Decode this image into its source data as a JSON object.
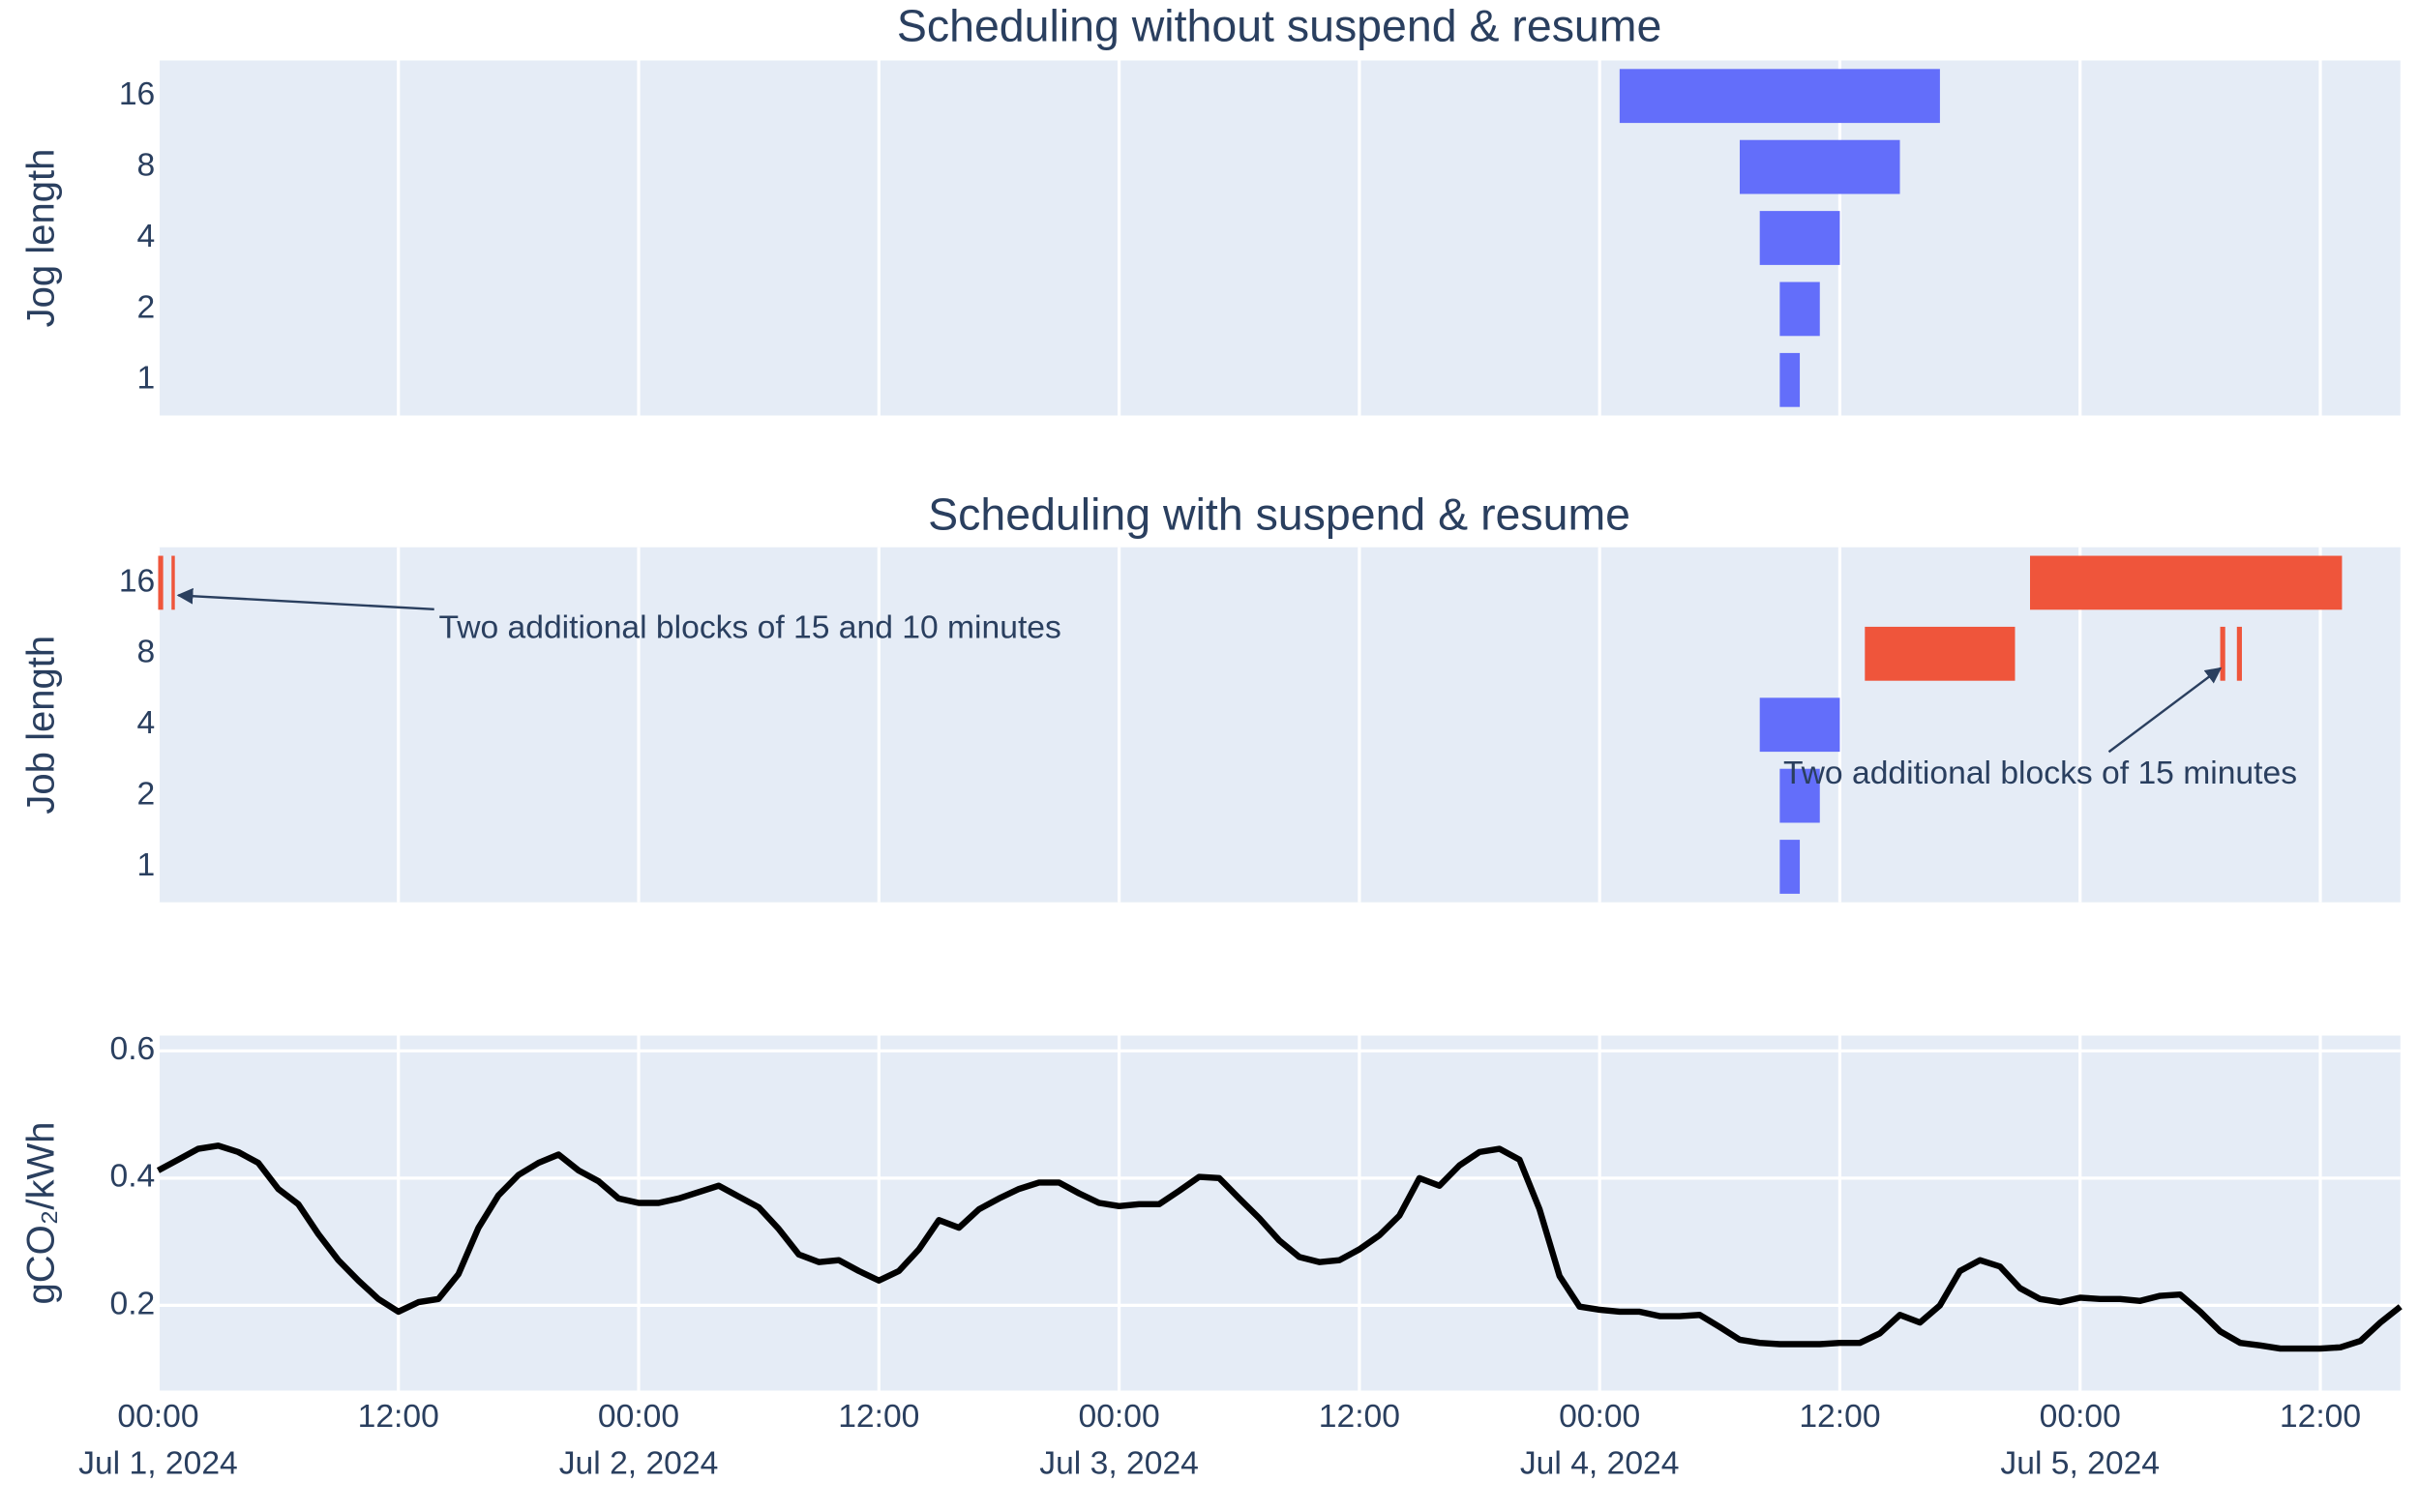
{
  "chart_data": [
    {
      "type": "gantt",
      "title": "Scheduling without suspend & resume",
      "y_title": "Jog length",
      "categories": [
        "1",
        "2",
        "4",
        "8",
        "16"
      ],
      "xlim": [
        "2024-07-01T00:00",
        "2024-07-05T16:00"
      ],
      "xticks": [
        "2024-07-01T00:00",
        "2024-07-01T12:00",
        "2024-07-02T00:00",
        "2024-07-02T12:00",
        "2024-07-03T00:00",
        "2024-07-03T12:00",
        "2024-07-04T00:00",
        "2024-07-04T12:00",
        "2024-07-05T00:00",
        "2024-07-05T12:00"
      ],
      "grid": true,
      "series": [
        {
          "color": "#636efa",
          "bars": [
            {
              "category": "16",
              "start": "2024-07-04T01:00",
              "end": "2024-07-04T17:00"
            },
            {
              "category": "8",
              "start": "2024-07-04T07:00",
              "end": "2024-07-04T15:00"
            },
            {
              "category": "4",
              "start": "2024-07-04T08:00",
              "end": "2024-07-04T12:00"
            },
            {
              "category": "2",
              "start": "2024-07-04T09:00",
              "end": "2024-07-04T11:00"
            },
            {
              "category": "1",
              "start": "2024-07-04T09:00",
              "end": "2024-07-04T10:00"
            }
          ]
        }
      ]
    },
    {
      "type": "gantt",
      "title": "Scheduling with suspend & resume",
      "y_title": "Job length",
      "categories": [
        "1",
        "2",
        "4",
        "8",
        "16"
      ],
      "xlim": [
        "2024-07-01T00:00",
        "2024-07-05T16:00"
      ],
      "xticks": [
        "2024-07-01T00:00",
        "2024-07-01T12:00",
        "2024-07-02T00:00",
        "2024-07-02T12:00",
        "2024-07-03T00:00",
        "2024-07-03T12:00",
        "2024-07-04T00:00",
        "2024-07-04T12:00",
        "2024-07-05T00:00",
        "2024-07-05T12:00"
      ],
      "grid": true,
      "series": [
        {
          "color": "#636efa",
          "bars": [
            {
              "category": "4",
              "start": "2024-07-04T08:00",
              "end": "2024-07-04T12:00"
            },
            {
              "category": "2",
              "start": "2024-07-04T09:00",
              "end": "2024-07-04T11:00"
            },
            {
              "category": "1",
              "start": "2024-07-04T09:00",
              "end": "2024-07-04T10:00"
            }
          ]
        },
        {
          "color": "#ef553b",
          "bars": [
            {
              "category": "16",
              "start": "2024-07-01T00:00",
              "end": "2024-07-01T00:15"
            },
            {
              "category": "16",
              "start": "2024-07-01T00:40",
              "end": "2024-07-01T00:50"
            },
            {
              "category": "16",
              "start": "2024-07-04T21:30",
              "end": "2024-07-05T13:05"
            },
            {
              "category": "8",
              "start": "2024-07-04T13:15",
              "end": "2024-07-04T20:45"
            },
            {
              "category": "8",
              "start": "2024-07-05T07:00",
              "end": "2024-07-05T07:15"
            },
            {
              "category": "8",
              "start": "2024-07-05T07:50",
              "end": "2024-07-05T08:05"
            }
          ]
        }
      ],
      "annotations": [
        "Two additional blocks of 15 and 10 minutes",
        "Two additional blocks of 15 minutes"
      ]
    },
    {
      "type": "line",
      "y_title": "gCO₂/kWh",
      "xlim": [
        "2024-07-01T00:00",
        "2024-07-05T16:00"
      ],
      "xticks": [
        {
          "value": "2024-07-01T00:00",
          "label": "00:00",
          "date_label": "Jul 1, 2024"
        },
        {
          "value": "2024-07-01T12:00",
          "label": "12:00"
        },
        {
          "value": "2024-07-02T00:00",
          "label": "00:00",
          "date_label": "Jul 2, 2024"
        },
        {
          "value": "2024-07-02T12:00",
          "label": "12:00"
        },
        {
          "value": "2024-07-03T00:00",
          "label": "00:00",
          "date_label": "Jul 3, 2024"
        },
        {
          "value": "2024-07-03T12:00",
          "label": "12:00"
        },
        {
          "value": "2024-07-04T00:00",
          "label": "00:00",
          "date_label": "Jul 4, 2024"
        },
        {
          "value": "2024-07-04T12:00",
          "label": "12:00"
        },
        {
          "value": "2024-07-05T00:00",
          "label": "00:00",
          "date_label": "Jul 5, 2024"
        },
        {
          "value": "2024-07-05T12:00",
          "label": "12:00"
        }
      ],
      "ylim": [
        0.066,
        0.624
      ],
      "yticks": [
        0.2,
        0.4,
        0.6
      ],
      "grid": true,
      "x": [
        "2024-07-01T00:00",
        "2024-07-01T01:00",
        "2024-07-01T02:00",
        "2024-07-01T03:00",
        "2024-07-01T04:00",
        "2024-07-01T05:00",
        "2024-07-01T06:00",
        "2024-07-01T07:00",
        "2024-07-01T08:00",
        "2024-07-01T09:00",
        "2024-07-01T10:00",
        "2024-07-01T11:00",
        "2024-07-01T12:00",
        "2024-07-01T13:00",
        "2024-07-01T14:00",
        "2024-07-01T15:00",
        "2024-07-01T16:00",
        "2024-07-01T17:00",
        "2024-07-01T18:00",
        "2024-07-01T19:00",
        "2024-07-01T20:00",
        "2024-07-01T21:00",
        "2024-07-01T22:00",
        "2024-07-01T23:00",
        "2024-07-02T00:00",
        "2024-07-02T01:00",
        "2024-07-02T02:00",
        "2024-07-02T03:00",
        "2024-07-02T04:00",
        "2024-07-02T05:00",
        "2024-07-02T06:00",
        "2024-07-02T07:00",
        "2024-07-02T08:00",
        "2024-07-02T09:00",
        "2024-07-02T10:00",
        "2024-07-02T11:00",
        "2024-07-02T12:00",
        "2024-07-02T13:00",
        "2024-07-02T14:00",
        "2024-07-02T15:00",
        "2024-07-02T16:00",
        "2024-07-02T17:00",
        "2024-07-02T18:00",
        "2024-07-02T19:00",
        "2024-07-02T20:00",
        "2024-07-02T21:00",
        "2024-07-02T22:00",
        "2024-07-02T23:00",
        "2024-07-03T00:00",
        "2024-07-03T01:00",
        "2024-07-03T02:00",
        "2024-07-03T03:00",
        "2024-07-03T04:00",
        "2024-07-03T05:00",
        "2024-07-03T06:00",
        "2024-07-03T07:00",
        "2024-07-03T08:00",
        "2024-07-03T09:00",
        "2024-07-03T10:00",
        "2024-07-03T11:00",
        "2024-07-03T12:00",
        "2024-07-03T13:00",
        "2024-07-03T14:00",
        "2024-07-03T15:00",
        "2024-07-03T16:00",
        "2024-07-03T17:00",
        "2024-07-03T18:00",
        "2024-07-03T19:00",
        "2024-07-03T20:00",
        "2024-07-03T21:00",
        "2024-07-03T22:00",
        "2024-07-03T23:00",
        "2024-07-04T00:00",
        "2024-07-04T01:00",
        "2024-07-04T02:00",
        "2024-07-04T03:00",
        "2024-07-04T04:00",
        "2024-07-04T05:00",
        "2024-07-04T06:00",
        "2024-07-04T07:00",
        "2024-07-04T08:00",
        "2024-07-04T09:00",
        "2024-07-04T10:00",
        "2024-07-04T11:00",
        "2024-07-04T12:00",
        "2024-07-04T13:00",
        "2024-07-04T14:00",
        "2024-07-04T15:00",
        "2024-07-04T16:00",
        "2024-07-04T17:00",
        "2024-07-04T18:00",
        "2024-07-04T19:00",
        "2024-07-04T20:00",
        "2024-07-04T21:00",
        "2024-07-04T22:00",
        "2024-07-04T23:00",
        "2024-07-05T00:00",
        "2024-07-05T01:00",
        "2024-07-05T02:00",
        "2024-07-05T03:00",
        "2024-07-05T04:00",
        "2024-07-05T05:00",
        "2024-07-05T06:00",
        "2024-07-05T07:00",
        "2024-07-05T08:00",
        "2024-07-05T09:00",
        "2024-07-05T10:00",
        "2024-07-05T11:00",
        "2024-07-05T12:00",
        "2024-07-05T13:00",
        "2024-07-05T14:00",
        "2024-07-05T15:00",
        "2024-07-05T16:00"
      ],
      "series": [
        {
          "color": "#000000",
          "values": [
            0.412,
            0.429,
            0.446,
            0.451,
            0.441,
            0.424,
            0.383,
            0.359,
            0.312,
            0.271,
            0.239,
            0.21,
            0.19,
            0.205,
            0.21,
            0.249,
            0.322,
            0.373,
            0.405,
            0.424,
            0.437,
            0.412,
            0.395,
            0.368,
            0.361,
            0.361,
            0.368,
            0.378,
            0.388,
            0.371,
            0.354,
            0.32,
            0.28,
            0.268,
            0.271,
            0.254,
            0.239,
            0.254,
            0.288,
            0.334,
            0.322,
            0.351,
            0.368,
            0.383,
            0.393,
            0.393,
            0.376,
            0.361,
            0.356,
            0.359,
            0.359,
            0.38,
            0.402,
            0.4,
            0.368,
            0.337,
            0.302,
            0.276,
            0.268,
            0.271,
            0.288,
            0.31,
            0.341,
            0.4,
            0.388,
            0.42,
            0.441,
            0.446,
            0.429,
            0.351,
            0.246,
            0.198,
            0.193,
            0.19,
            0.19,
            0.183,
            0.183,
            0.185,
            0.166,
            0.146,
            0.141,
            0.139,
            0.139,
            0.139,
            0.141,
            0.141,
            0.156,
            0.185,
            0.173,
            0.2,
            0.254,
            0.271,
            0.261,
            0.227,
            0.21,
            0.205,
            0.212,
            0.21,
            0.21,
            0.207,
            0.215,
            0.217,
            0.19,
            0.159,
            0.141,
            0.137,
            0.132,
            0.132,
            0.132,
            0.134,
            0.144,
            0.173,
            0.198
          ]
        }
      ]
    }
  ]
}
